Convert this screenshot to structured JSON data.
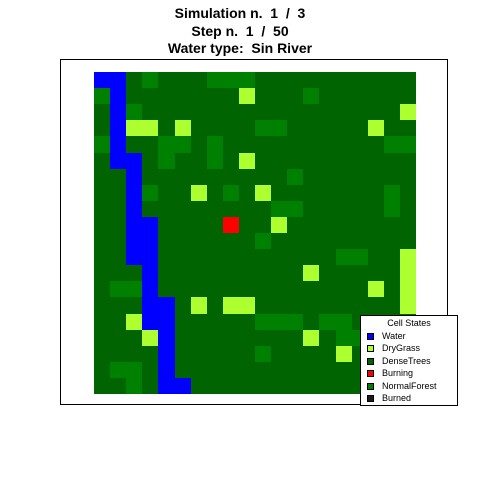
{
  "titles": {
    "line1": "Simulation n.  1  /  3",
    "line2": "Step n.  1  /  50",
    "line3": "Water type:  Sin River"
  },
  "chart_data": {
    "type": "heatmap",
    "grid_rows": 20,
    "grid_cols": 20,
    "states": [
      "Water",
      "DryGrass",
      "DenseTrees",
      "Burning",
      "NormalForest",
      "Burned"
    ],
    "colors": {
      "Water": "#0000ff",
      "DryGrass": "#adff2f",
      "DenseTrees": "#006400",
      "Burning": "#ff0000",
      "NormalForest": "#008000",
      "Burned": "#1a1a1a"
    },
    "cells": [
      "WWDNDDDNNNDDDDDDDDDD",
      "NWDDDDDDDGDDDNDDDDDD",
      "DWNDDDDDDDDDDDDDDDDG",
      "DWGGDGDDDDNNDDDDDGDD",
      "NWDDNNDNDDDDDDDDDDNN",
      "DWWDNDDNDGDDDDDDDDDD",
      "DDWDDDDDDDDDNDDDDDDD",
      "DDWNDDGDNDGDDDDDDDND",
      "DDWDDDDDDDDNNDDDDDND",
      "DDWWDDDDBDDGDDDDDDDD",
      "DDWWDDDDDDNDDDDDDDDD",
      "DDWWDDDDDDDDDDDNNDDG",
      "DDDWDDDDDDDDDGDDDDDG",
      "DNNWDDDDDDDDDDDDDGDG",
      "DDDWWDGDGGDDDDDDDDDG",
      "DDGWWDDDDDNNNDNNDDDD",
      "DDDGWDDDDDDDDGDNNDDD",
      "DDDDWDDDDDNDDDDGDDDD",
      "DNNDWDDDDDDDDDDDDDDD",
      "DDNDWWDDDDDDDDDDDDDD"
    ]
  },
  "legend": {
    "title": "Cell States",
    "items": [
      {
        "label": "Water",
        "color": "#0000ff"
      },
      {
        "label": "DryGrass",
        "color": "#adff2f"
      },
      {
        "label": "DenseTrees",
        "color": "#006400"
      },
      {
        "label": "Burning",
        "color": "#ff0000"
      },
      {
        "label": "NormalForest",
        "color": "#008000"
      },
      {
        "label": "Burned",
        "color": "#1a1a1a"
      }
    ]
  }
}
